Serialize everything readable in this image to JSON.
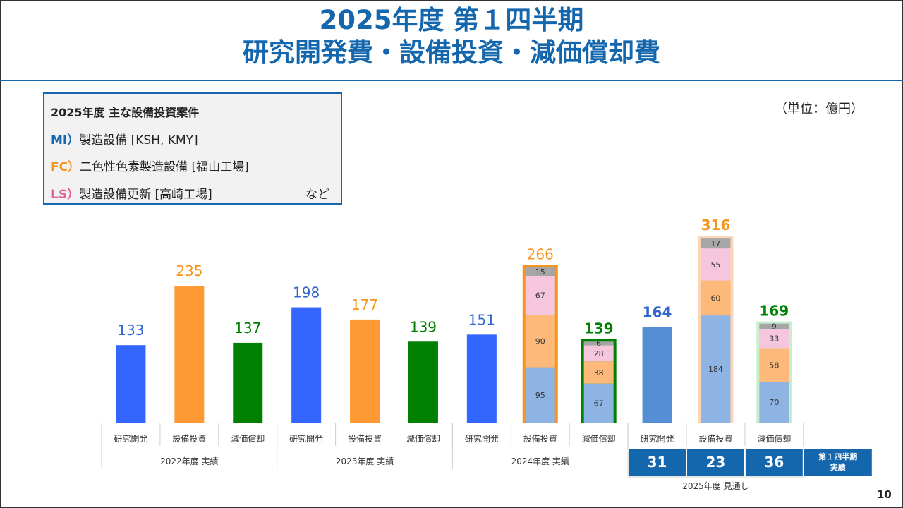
{
  "title": {
    "line1": "2025年度 第１四半期",
    "line2": "研究開発費・設備投資・減価償却費"
  },
  "unit": "（単位：億円）",
  "page_number": "10",
  "info_box": {
    "heading": "2025年度 主な設備投資案件",
    "items": [
      {
        "tag": "MI）",
        "text": "製造設備 [KSH, KMY]",
        "color": "#1466ad"
      },
      {
        "tag": "FC）",
        "text": "二色性色素製造設備 [福山工場]",
        "color": "#f7941d"
      },
      {
        "tag": "LS）",
        "text": "製造設備更新 [高崎工場]",
        "color": "#e8629a"
      }
    ],
    "etc": "など"
  },
  "chart_data": {
    "type": "bar",
    "categories": [
      "研究開発",
      "設備投資",
      "減価償却",
      "研究開発",
      "設備投資",
      "減価償却",
      "研究開発",
      "設備投資",
      "減価償却",
      "研究開発",
      "設備投資",
      "減価償却"
    ],
    "groups": [
      {
        "label": "2022年度 実績",
        "span": 3
      },
      {
        "label": "2023年度 実績",
        "span": 3
      },
      {
        "label": "2024年度 実績",
        "span": 3
      },
      {
        "label": "2025年度 見通し",
        "span": 3
      }
    ],
    "values": [
      133,
      235,
      137,
      198,
      177,
      139,
      151,
      266,
      139,
      164,
      316,
      169
    ],
    "bar_kind": [
      "rd",
      "capex",
      "dep",
      "rd",
      "capex",
      "dep",
      "rd",
      "capex",
      "dep",
      "rd_fc",
      "capex",
      "dep"
    ],
    "total_style": [
      "normal",
      "normal",
      "normal",
      "normal",
      "normal",
      "normal",
      "normal",
      "normal",
      "bold",
      "bold",
      "bold",
      "bold"
    ],
    "stacks": {
      "7": [
        {
          "segment": "MI",
          "value": 95
        },
        {
          "segment": "FC",
          "value": 90
        },
        {
          "segment": "LS",
          "value": 67
        },
        {
          "segment": "other",
          "value": 15
        }
      ],
      "8": [
        {
          "segment": "MI",
          "value": 67
        },
        {
          "segment": "FC",
          "value": 38
        },
        {
          "segment": "LS",
          "value": 28
        },
        {
          "segment": "other",
          "value": 6
        }
      ],
      "10": [
        {
          "segment": "MI",
          "value": 184
        },
        {
          "segment": "FC",
          "value": 60
        },
        {
          "segment": "LS",
          "value": 55
        },
        {
          "segment": "other",
          "value": 17
        }
      ],
      "11": [
        {
          "segment": "MI",
          "value": 70
        },
        {
          "segment": "FC",
          "value": 58
        },
        {
          "segment": "LS",
          "value": 33
        },
        {
          "segment": "other",
          "value": 9
        }
      ]
    },
    "q1_actuals": {
      "values": [
        "31",
        "23",
        "36"
      ],
      "label": "第１四半期実績"
    },
    "ylim": [
      0,
      340
    ],
    "colors": {
      "rd": "#3366ff",
      "capex": "#ff9933",
      "dep": "#008000",
      "rd_fc": "#558ed5",
      "MI": "#8eb4e3",
      "FC": "#fcb979",
      "LS": "#f5c6dd",
      "other": "#a6a6a6",
      "capex_border": "#f7941d",
      "capex_fc_border": "#fbd5b5",
      "dep_border": "#008000",
      "dep_fc_border": "#c6efce",
      "label_rd": "#3366cc",
      "label_capex": "#f7941d",
      "label_dep": "#008000",
      "q1_bg": "#1466ad"
    }
  }
}
